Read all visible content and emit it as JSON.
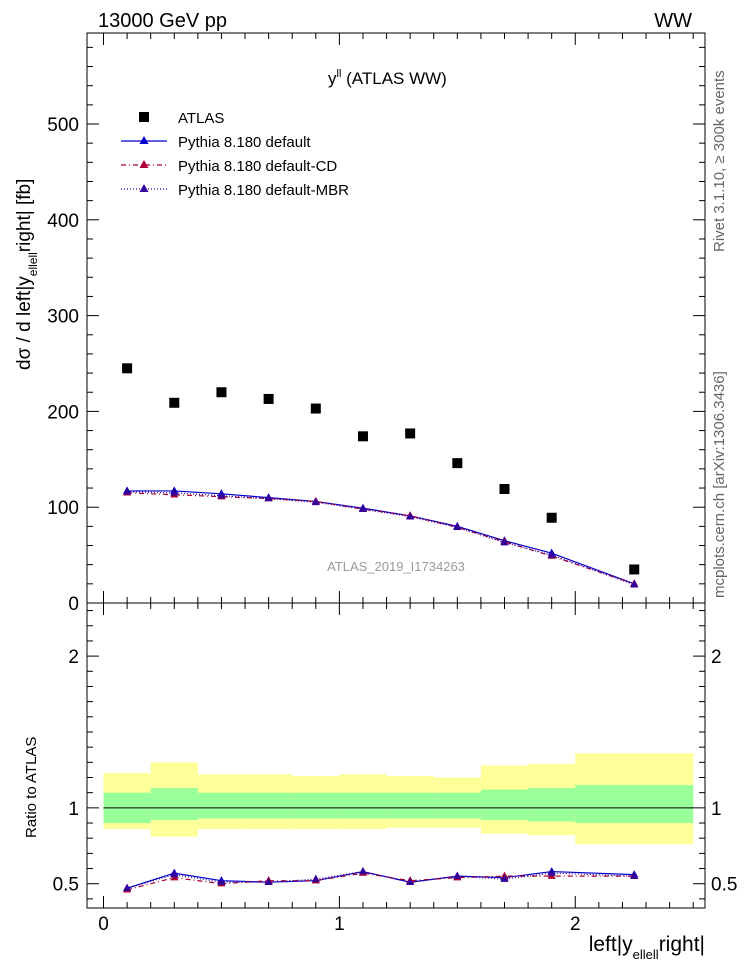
{
  "header": {
    "energy_label": "13000 GeV pp",
    "process_label": "WW"
  },
  "side_text": {
    "rivet": "Rivet 3.1.10, ≥ 300k events",
    "source": "mcplots.cern.ch [arXiv:1306.3436]"
  },
  "watermark": "ATLAS_2019_I1734263",
  "colors": {
    "data": "#000000",
    "default": "#0000cc",
    "cd": "#aa0033",
    "mbr": "#330099",
    "band_inner": "#99ff99",
    "band_outer": "#ffff99"
  },
  "chart_data": [
    {
      "type": "scatter",
      "title": "y^{ll} (ATLAS WW)",
      "title_main": "y",
      "title_sup": "ll",
      "title_rest": " (ATLAS WW)",
      "ylabel_a": "dσ / d left|y",
      "ylabel_sub": "ellell",
      "ylabel_b": "right| [fb]",
      "xlabel": "left|y_{ellell}right|",
      "xlim": [
        -0.07,
        2.55
      ],
      "ylim": [
        0,
        595
      ],
      "yticks": [
        0,
        100,
        200,
        300,
        400,
        500
      ],
      "ytick_labels": [
        "0",
        "100",
        "200",
        "300",
        "400",
        "500"
      ],
      "legend_position": "top-left",
      "legend": [
        "ATLAS",
        "Pythia 8.180 default",
        "Pythia 8.180 default-CD",
        "Pythia 8.180 default-MBR"
      ],
      "x": [
        0.1,
        0.3,
        0.5,
        0.7,
        0.9,
        1.1,
        1.3,
        1.5,
        1.7,
        1.9,
        2.25
      ],
      "series": [
        {
          "name": "ATLAS",
          "values": [
            245,
            209,
            220,
            213,
            203,
            174,
            177,
            146,
            119,
            89,
            35
          ]
        },
        {
          "name": "Pythia 8.180 default",
          "values": [
            117,
            117,
            114,
            110,
            106,
            99,
            91,
            80,
            65,
            52,
            20
          ]
        },
        {
          "name": "Pythia 8.180 default-CD",
          "values": [
            115,
            113,
            111,
            109,
            106,
            98,
            91,
            79,
            64,
            49,
            20
          ]
        },
        {
          "name": "Pythia 8.180 default-MBR",
          "values": [
            116,
            115,
            112,
            109,
            105,
            98,
            90,
            79,
            63,
            50,
            19
          ]
        }
      ]
    },
    {
      "type": "line",
      "ylabel": "Ratio to ATLAS",
      "xlim": [
        -0.07,
        2.55
      ],
      "ylim": [
        0.34,
        2.35
      ],
      "yticks": [
        0.5,
        1,
        2
      ],
      "ytick_labels": [
        "0.5",
        "1",
        "2"
      ],
      "xticks": [
        0,
        1,
        2
      ],
      "xtick_labels": [
        "0",
        "1",
        "2"
      ],
      "bin_edges": [
        0,
        0.2,
        0.4,
        0.6,
        0.8,
        1.0,
        1.2,
        1.4,
        1.6,
        1.8,
        2.0,
        2.5
      ],
      "band_inner": [
        [
          0.9,
          1.1
        ],
        [
          0.92,
          1.13
        ],
        [
          0.93,
          1.1
        ],
        [
          0.93,
          1.1
        ],
        [
          0.93,
          1.1
        ],
        [
          0.93,
          1.1
        ],
        [
          0.93,
          1.1
        ],
        [
          0.93,
          1.1
        ],
        [
          0.92,
          1.12
        ],
        [
          0.91,
          1.13
        ],
        [
          0.9,
          1.15
        ]
      ],
      "band_outer": [
        [
          0.86,
          1.23
        ],
        [
          0.81,
          1.3
        ],
        [
          0.86,
          1.22
        ],
        [
          0.86,
          1.22
        ],
        [
          0.86,
          1.21
        ],
        [
          0.86,
          1.22
        ],
        [
          0.87,
          1.21
        ],
        [
          0.87,
          1.2
        ],
        [
          0.83,
          1.28
        ],
        [
          0.82,
          1.29
        ],
        [
          0.76,
          1.36
        ]
      ],
      "x": [
        0.1,
        0.3,
        0.5,
        0.7,
        0.9,
        1.1,
        1.3,
        1.5,
        1.7,
        1.9,
        2.25
      ],
      "series": [
        {
          "name": "Pythia 8.180 default",
          "values": [
            0.47,
            0.57,
            0.52,
            0.51,
            0.52,
            0.58,
            0.51,
            0.55,
            0.54,
            0.58,
            0.56
          ]
        },
        {
          "name": "Pythia 8.180 default-CD",
          "values": [
            0.46,
            0.54,
            0.5,
            0.52,
            0.52,
            0.57,
            0.52,
            0.54,
            0.55,
            0.55,
            0.55
          ]
        },
        {
          "name": "Pythia 8.180 default-MBR",
          "values": [
            0.47,
            0.56,
            0.51,
            0.51,
            0.53,
            0.58,
            0.51,
            0.55,
            0.53,
            0.57,
            0.55
          ]
        }
      ]
    }
  ]
}
